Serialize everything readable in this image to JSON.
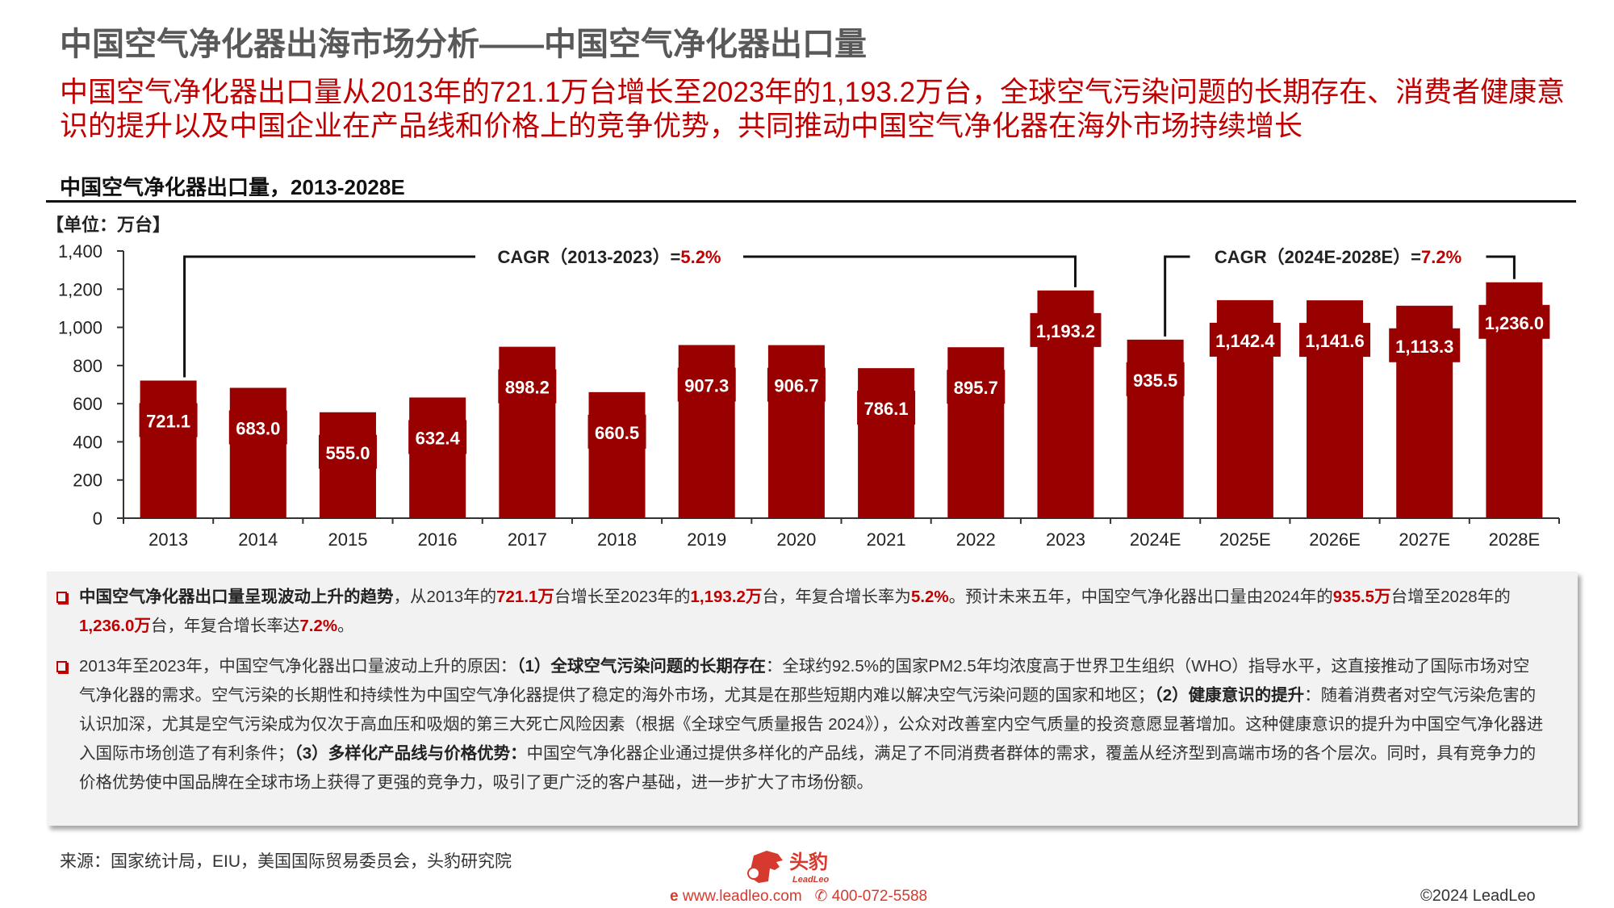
{
  "header": {
    "title": "中国空气净化器出海市场分析——中国空气净化器出口量",
    "subtitle": "中国空气净化器出口量从2013年的721.1万台增长至2023年的1,193.2万台，全球空气污染问题的长期存在、消费者健康意识的提升以及中国企业在产品线和价格上的竞争优势，共同推动中国空气净化器在海外市场持续增长"
  },
  "chart_data": {
    "type": "bar",
    "title": "中国空气净化器出口量，2013-2028E",
    "unit": "【单位：万台】",
    "categories": [
      "2013",
      "2014",
      "2015",
      "2016",
      "2017",
      "2018",
      "2019",
      "2020",
      "2021",
      "2022",
      "2023",
      "2024E",
      "2025E",
      "2026E",
      "2027E",
      "2028E"
    ],
    "values": [
      721.1,
      683.0,
      555.0,
      632.4,
      898.2,
      660.5,
      907.3,
      906.7,
      786.1,
      895.7,
      1193.2,
      935.5,
      1142.4,
      1141.6,
      1113.3,
      1236.0
    ],
    "labels": [
      "721.1",
      "683.0",
      "555.0",
      "632.4",
      "898.2",
      "660.5",
      "907.3",
      "906.7",
      "786.1",
      "895.7",
      "1,193.2",
      "935.5",
      "1,142.4",
      "1,141.6",
      "1,113.3",
      "1,236.0"
    ],
    "ylim": [
      0,
      1400
    ],
    "yticks": [
      "0",
      "200",
      "400",
      "600",
      "800",
      "1,000",
      "1,200",
      "1,400"
    ],
    "bar_color": "#990000",
    "grid": false,
    "annotations": [
      {
        "text": "CAGR（2013-2023）=",
        "value": "5.2%",
        "from": "2013",
        "to": "2023"
      },
      {
        "text": "CAGR（2024E-2028E）=",
        "value": "7.2%",
        "from": "2024E",
        "to": "2028E"
      }
    ]
  },
  "notes": {
    "p1": {
      "bold": "中国空气净化器出口量呈现波动上升的趋势",
      "t1": "，从2013年的",
      "v1": "721.1万",
      "t2": "台增长至2023年的",
      "v2": "1,193.2万",
      "t3": "台，年复合增长率为",
      "v3": "5.2%",
      "t4": "。预计未来五年，中国空气净化器出口量由2024年的",
      "v4": "935.5万",
      "t5": "台增至2028年的",
      "v5": "1,236.0万",
      "t6": "台，年复合增长率达",
      "v6": "7.2%",
      "t7": "。"
    },
    "p2": {
      "t1": "2013年至2023年，中国空气净化器出口量波动上升的原因：",
      "b1": "（1）全球空气污染问题的长期存在",
      "t2": "：全球约92.5%的国家PM2.5年均浓度高于世界卫生组织（WHO）指导水平，这直接推动了国际市场对空气净化器的需求。空气污染的长期性和持续性为中国空气净化器提供了稳定的海外市场，尤其是在那些短期内难以解决空气污染问题的国家和地区；",
      "b2": "（2）健康意识的提升",
      "t3": "：随着消费者对空气污染危害的认识加深，尤其是空气污染成为仅次于高血压和吸烟的第三大死亡风险因素（根据《全球空气质量报告 2024》），公众对改善室内空气质量的投资意愿显著增加。这种健康意识的提升为中国空气净化器进入国际市场创造了有利条件；",
      "b3": "（3）多样化产品线与价格优势：",
      "t4": "中国空气净化器企业通过提供多样化的产品线，满足了不同消费者群体的需求，覆盖从经济型到高端市场的各个层次。同时，具有竞争力的价格优势使中国品牌在全球市场上获得了更强的竞争力，吸引了更广泛的客户基础，进一步扩大了市场份额。"
    }
  },
  "footer": {
    "source": "来源：国家统计局，EIU，美国国际贸易委员会，头豹研究院",
    "logo_cn": "头豹",
    "logo_en": "LeadLeo",
    "website": "www.leadleo.com",
    "phone": "400-072-5588",
    "copyright": "©2024 LeadLeo"
  }
}
